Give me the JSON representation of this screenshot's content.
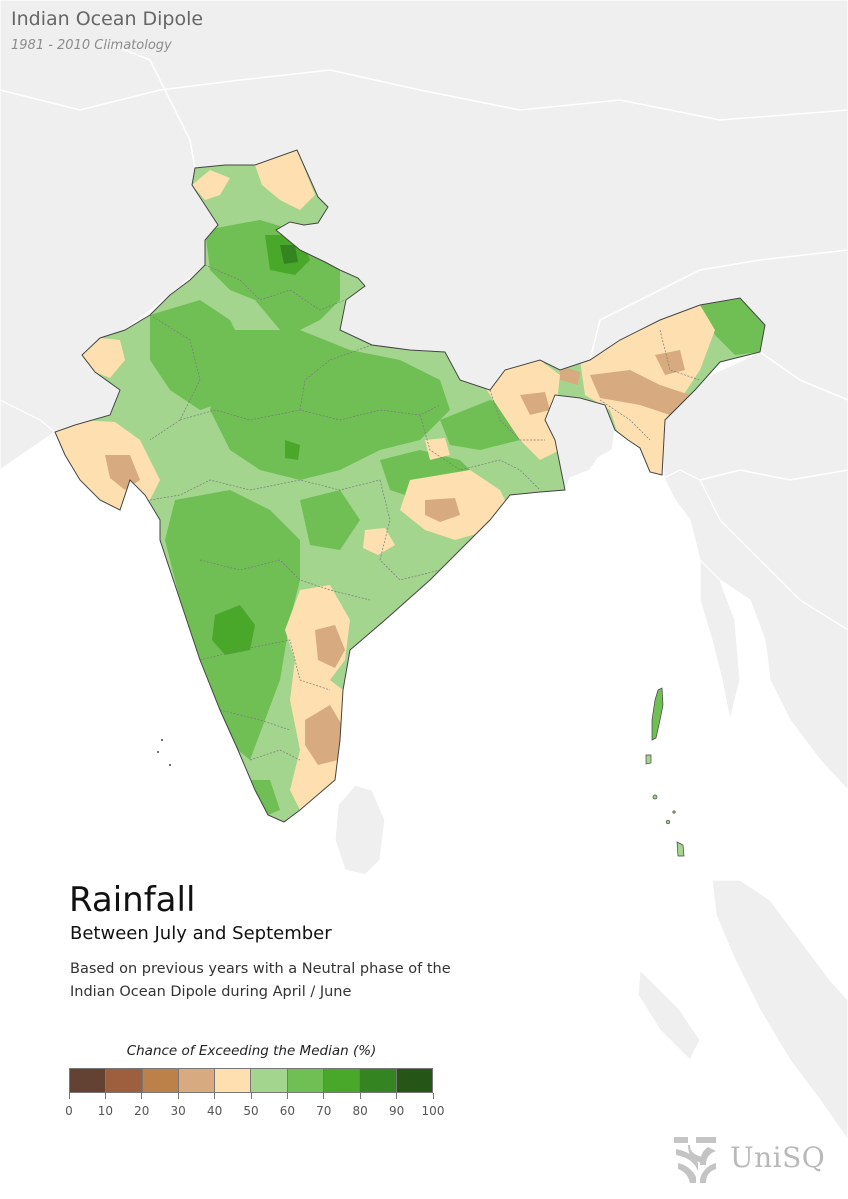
{
  "header": {
    "title": "Indian Ocean Dipole",
    "subtitle": "1981 - 2010 Climatology"
  },
  "map": {
    "title": "Rainfall",
    "subtitle": "Between July and September",
    "description": "Based on previous years with a Neutral phase of the Indian Ocean Dipole during April / June",
    "background_land_color": "#efefef",
    "sea_color": "#ffffff"
  },
  "legend": {
    "title": "Chance of Exceeding the Median (%)",
    "classes": [
      {
        "range": "0-10",
        "color": "#634234"
      },
      {
        "range": "10-20",
        "color": "#9d5f3e"
      },
      {
        "range": "20-30",
        "color": "#bb8148"
      },
      {
        "range": "30-40",
        "color": "#d7ab7f"
      },
      {
        "range": "40-50",
        "color": "#fedfb0"
      },
      {
        "range": "50-60",
        "color": "#a3d58f"
      },
      {
        "range": "60-70",
        "color": "#70bf55"
      },
      {
        "range": "70-80",
        "color": "#49a829"
      },
      {
        "range": "80-90",
        "color": "#348522"
      },
      {
        "range": "90-100",
        "color": "#255618"
      }
    ],
    "ticks": [
      "0",
      "10",
      "20",
      "30",
      "40",
      "50",
      "60",
      "70",
      "80",
      "90",
      "100"
    ]
  },
  "logo": {
    "text": "UniSQ",
    "icon": "unisq-logo-icon"
  }
}
